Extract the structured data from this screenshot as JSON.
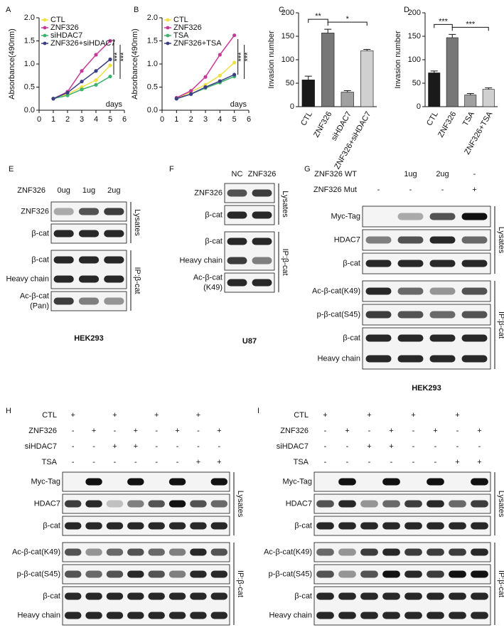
{
  "chart_data": [
    {
      "type": "line",
      "letter": "A",
      "ylabel": "Absorbance(490nm)",
      "x_note": "days",
      "x": [
        1,
        2,
        3,
        4,
        5
      ],
      "xlim": [
        0,
        6
      ],
      "xticks": [
        0,
        1,
        2,
        3,
        4,
        5,
        6
      ],
      "ylim": [
        0,
        2
      ],
      "yticks": [
        {
          "value": 0,
          "label": "0.0"
        },
        0.5,
        {
          "value": 1,
          "label": "1.0"
        },
        1.5,
        {
          "value": 2,
          "label": "2.0"
        }
      ],
      "series": [
        {
          "name": "CTL",
          "color": "#f0e040",
          "values": [
            0.25,
            0.35,
            0.5,
            0.65,
            0.97
          ]
        },
        {
          "name": "ZNF326",
          "color": "#c8389a",
          "values": [
            0.25,
            0.4,
            0.85,
            1.2,
            1.5
          ]
        },
        {
          "name": "siHDAC7",
          "color": "#3db36b",
          "values": [
            0.25,
            0.32,
            0.45,
            0.55,
            0.73
          ]
        },
        {
          "name": "ZNF326+siHDAC7",
          "color": "#3b3f83",
          "values": [
            0.25,
            0.38,
            0.62,
            0.85,
            1.1
          ]
        }
      ],
      "annotations": [
        "***",
        "***"
      ]
    },
    {
      "type": "line",
      "letter": "B",
      "ylabel": "Absorbance(490nm)",
      "x_note": "days",
      "x": [
        1,
        2,
        3,
        4,
        5
      ],
      "xlim": [
        0,
        6
      ],
      "xticks": [
        0,
        1,
        2,
        3,
        4,
        5,
        6
      ],
      "ylim": [
        0,
        2
      ],
      "yticks": [
        {
          "value": 0,
          "label": "0.0"
        },
        0.5,
        {
          "value": 1,
          "label": "1.0"
        },
        1.5,
        {
          "value": 2,
          "label": "2.0"
        }
      ],
      "series": [
        {
          "name": "CTL",
          "color": "#f0e040",
          "values": [
            0.25,
            0.4,
            0.55,
            0.75,
            1.03
          ]
        },
        {
          "name": "ZNF326",
          "color": "#c8389a",
          "values": [
            0.27,
            0.42,
            0.72,
            1.2,
            1.62
          ]
        },
        {
          "name": "TSA",
          "color": "#3db36b",
          "values": [
            0.25,
            0.35,
            0.48,
            0.6,
            0.73
          ]
        },
        {
          "name": "ZNF326+TSA",
          "color": "#3b3f83",
          "values": [
            0.25,
            0.35,
            0.5,
            0.63,
            0.77
          ]
        }
      ],
      "annotations": [
        "***",
        "***"
      ]
    },
    {
      "type": "bar",
      "letter": "C",
      "ylabel": "Invasion number",
      "categories": [
        "CTL",
        "ZNF326",
        "siHDAC7",
        "ZNF326+siHDAC7"
      ],
      "values": [
        57,
        157,
        31,
        119
      ],
      "errors": [
        8,
        8,
        3,
        3
      ],
      "colors": [
        "#1a1a1a",
        "#777777",
        "#a0a0a0",
        "#d0d0d0"
      ],
      "ylim": [
        0,
        200
      ],
      "yticks": [
        0,
        50,
        100,
        150,
        200
      ],
      "annotations": [
        "**",
        "*"
      ]
    },
    {
      "type": "bar",
      "letter": "D",
      "ylabel": "Invasion number",
      "categories": [
        "CTL",
        "ZNF326",
        "TSA",
        "ZNF326+TSA"
      ],
      "values": [
        72,
        147,
        25,
        37
      ],
      "errors": [
        4,
        7,
        3,
        3
      ],
      "colors": [
        "#1a1a1a",
        "#777777",
        "#a0a0a0",
        "#d0d0d0"
      ],
      "ylim": [
        0,
        200
      ],
      "yticks": [
        0,
        50,
        100,
        150,
        200
      ],
      "annotations": [
        "***",
        "***"
      ]
    }
  ],
  "blots": [
    {
      "letter": "E",
      "conditions": [
        {
          "name": "ZNF326",
          "marks": [
            "0ug",
            "1ug",
            "2ug"
          ]
        }
      ],
      "groups": [
        {
          "name": "Lysates",
          "boxes": [
            [
              [
                "ZNF326"
              ]
            ],
            [
              [
                "β-cat"
              ]
            ]
          ]
        },
        {
          "name": "IP:β-cat",
          "boxes": [
            [
              [
                "β-cat"
              ],
              [
                "Heavy chain"
              ]
            ],
            [
              [
                "Ac-β-cat",
                "(Pan)"
              ]
            ]
          ]
        }
      ],
      "cell_line": "HEK293"
    },
    {
      "letter": "F",
      "conditions": [
        {
          "marks": [
            "NC",
            "ZNF326"
          ]
        }
      ],
      "groups": [
        {
          "name": "Lysates",
          "boxes": [
            [
              [
                "ZNF326"
              ]
            ],
            [
              [
                "β-cat"
              ]
            ]
          ]
        },
        {
          "name": "IP:β-cat",
          "boxes": [
            [
              [
                "β-cat"
              ],
              [
                "Heavy chain"
              ]
            ],
            [
              [
                "Ac-β-cat",
                "(K49)"
              ]
            ]
          ]
        }
      ],
      "cell_line": "U87"
    },
    {
      "letter": "G",
      "conditions": [
        {
          "name": "ZNF326 WT",
          "marks": [
            null,
            "1ug",
            "2ug",
            "-"
          ]
        },
        {
          "name": "ZNF326 Mut",
          "marks": [
            "-",
            "-",
            "-",
            "+"
          ]
        }
      ],
      "groups": [
        {
          "name": "Lysates",
          "boxes": [
            [
              [
                "Myc-Tag"
              ]
            ],
            [
              [
                "HDAC7"
              ]
            ],
            [
              [
                "β-cat"
              ]
            ]
          ]
        },
        {
          "name": "IP:β-cat",
          "boxes": [
            [
              [
                "Ac-β-cat(K49)"
              ]
            ],
            [
              [
                "p-β-cat(S45)"
              ]
            ],
            [
              [
                "β-cat"
              ],
              [
                "Heavy chain"
              ]
            ]
          ]
        }
      ],
      "cell_line": "HEK293"
    },
    {
      "letter": "H",
      "conditions": [
        {
          "name": "CTL",
          "marks": [
            "+",
            null,
            "+",
            null,
            "+",
            null,
            "+",
            null
          ]
        },
        {
          "name": "ZNF326",
          "marks": [
            "-",
            "+",
            "-",
            "+",
            "-",
            "+",
            "-",
            "+"
          ]
        },
        {
          "name": "siHDAC7",
          "marks": [
            "-",
            "-",
            "+",
            "+",
            "-",
            "-",
            "-",
            "-"
          ]
        },
        {
          "name": "TSA",
          "marks": [
            "-",
            "-",
            "-",
            "-",
            "-",
            "-",
            "+",
            "+"
          ]
        }
      ],
      "groups": [
        {
          "name": "Lysates",
          "boxes": [
            [
              [
                "Myc-Tag"
              ]
            ],
            [
              [
                "HDAC7"
              ]
            ],
            [
              [
                "β-cat"
              ]
            ]
          ]
        },
        {
          "name": "IP:β-cat",
          "boxes": [
            [
              [
                "Ac-β-cat(K49)"
              ]
            ],
            [
              [
                "p-β-cat(S45)"
              ]
            ],
            [
              [
                "β-cat"
              ],
              [
                "Heavy chain"
              ]
            ]
          ]
        }
      ]
    },
    {
      "letter": "I",
      "conditions": [
        {
          "name": "CTL",
          "marks": [
            "+",
            null,
            "+",
            null,
            "+",
            null,
            "+",
            null
          ]
        },
        {
          "name": "ZNF326",
          "marks": [
            "-",
            "+",
            "-",
            "+",
            "-",
            "+",
            "-",
            "+"
          ]
        },
        {
          "name": "siHDAC7",
          "marks": [
            "-",
            "-",
            "+",
            "+",
            "-",
            "-",
            "-",
            "-"
          ]
        },
        {
          "name": "TSA",
          "marks": [
            "-",
            "-",
            "-",
            "-",
            "-",
            "-",
            "+",
            "+"
          ]
        }
      ],
      "groups": [
        {
          "name": "Lysates",
          "boxes": [
            [
              [
                "Myc-Tag"
              ]
            ],
            [
              [
                "HDAC7"
              ]
            ],
            [
              [
                "β-cat"
              ]
            ]
          ]
        },
        {
          "name": "IP:β-cat",
          "boxes": [
            [
              [
                "Ac-β-cat(K49)"
              ]
            ],
            [
              [
                "p-β-cat(S45)"
              ]
            ],
            [
              [
                "β-cat"
              ],
              [
                "Heavy chain"
              ]
            ]
          ]
        }
      ]
    }
  ]
}
